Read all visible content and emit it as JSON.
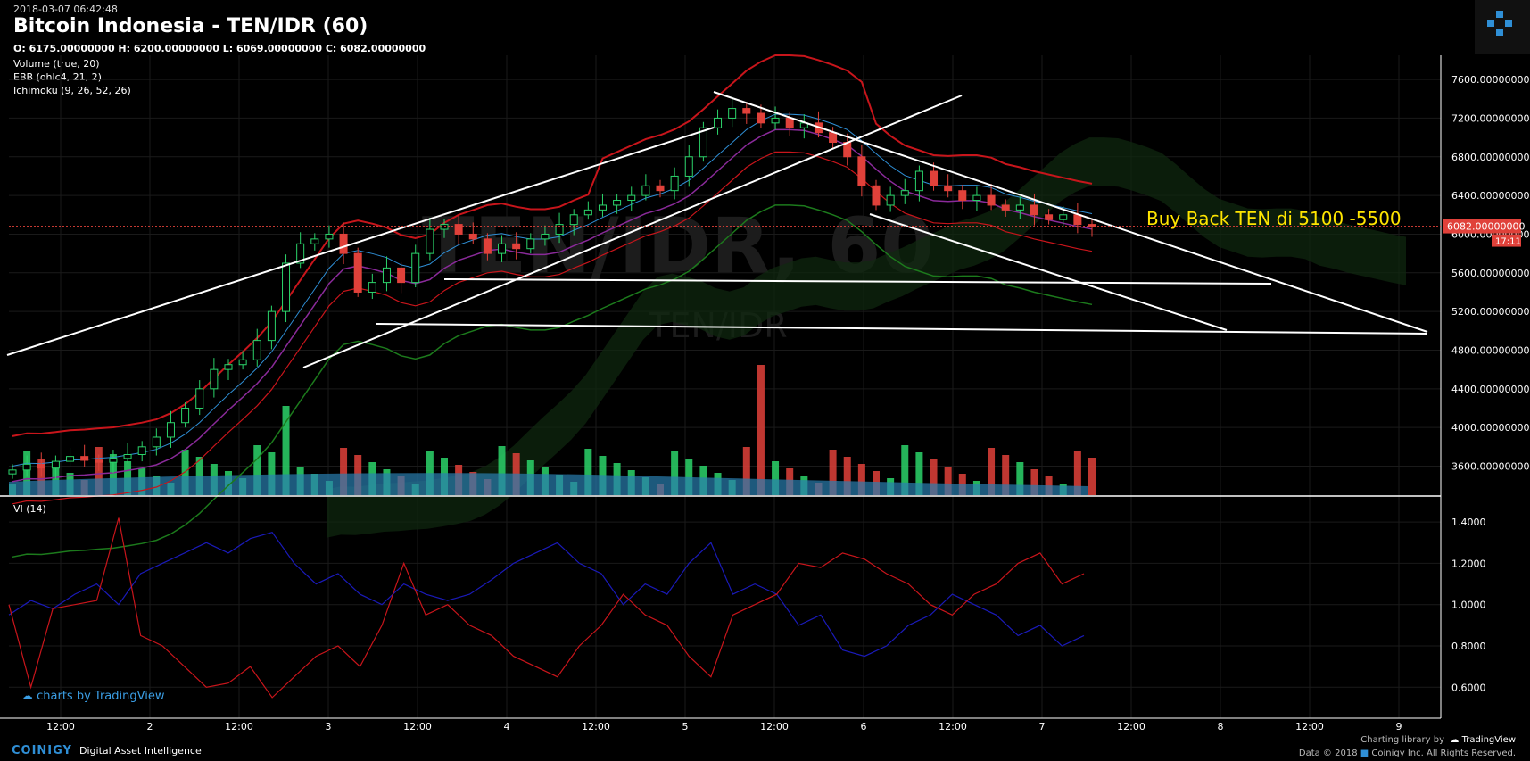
{
  "header": {
    "timestamp": "2018-03-07 06:42:48",
    "title": "Bitcoin Indonesia - TEN/IDR (60)",
    "ohlc": "O: 6175.00000000 H: 6200.00000000 L: 6069.00000000 C: 6082.00000000"
  },
  "indicators": [
    "Volume (true, 20)",
    "EBB (ohlc4, 21, 2)",
    "Ichimoku (9, 26, 52, 26)"
  ],
  "watermark": {
    "main": "TEN/IDR, 60",
    "sub": "TEN/IDR"
  },
  "annotation": "Buy Back TEN di 5100 -5500",
  "price_label": "6082.00000000",
  "countdown": "17:11",
  "vi_label": "VI (14)",
  "footer": {
    "brand": "COINIGY",
    "tagline": "Digital Asset Intelligence",
    "charting": "Charting library by",
    "tradingview": "TradingView",
    "copyright": "Data © 2018",
    "copyright2": "Coinigy Inc. All Rights Reserved.",
    "charts_by": "charts by TradingView"
  },
  "colors": {
    "up": "#2bd46a",
    "down": "#e0413a",
    "bb": "#c8151b",
    "cloud_green": "#1c7a1c",
    "vi_plus": "#1a1ab8",
    "vi_minus": "#c8151b",
    "annotation": "#ffe500",
    "accent": "#2f8fd6"
  },
  "chart_data": [
    {
      "type": "candlestick",
      "y_ticks": [
        "7600.00000000",
        "7200.00000000",
        "6800.00000000",
        "6400.00000000",
        "6000.00000000",
        "5600.00000000",
        "5200.00000000",
        "4800.00000000",
        "4400.00000000",
        "4000.00000000",
        "3600.00000000"
      ],
      "ylim": [
        3300,
        7850
      ],
      "x_ticks": [
        "12:00",
        "2",
        "12:00",
        "3",
        "12:00",
        "4",
        "12:00",
        "5",
        "12:00",
        "6",
        "12:00",
        "7",
        "12:00",
        "8",
        "12:00",
        "9"
      ],
      "close_series": [
        3560,
        3620,
        3580,
        3650,
        3700,
        3660,
        3640,
        3680,
        3720,
        3800,
        3900,
        4050,
        4200,
        4400,
        4600,
        4650,
        4700,
        4900,
        5200,
        5700,
        5900,
        5950,
        6000,
        5800,
        5400,
        5500,
        5650,
        5500,
        5800,
        6050,
        6100,
        6000,
        5950,
        5800,
        5900,
        5850,
        5950,
        6000,
        6100,
        6200,
        6250,
        6300,
        6350,
        6400,
        6500,
        6450,
        6600,
        6800,
        7100,
        7200,
        7300,
        7250,
        7150,
        7200,
        7100,
        7150,
        7050,
        6950,
        6800,
        6500,
        6300,
        6400,
        6450,
        6650,
        6500,
        6450,
        6350,
        6400,
        6300,
        6250,
        6300,
        6200,
        6150,
        6200,
        6100,
        6082
      ],
      "annotation_levels": [
        5100,
        5500
      ],
      "last_price": 6082
    },
    {
      "type": "line",
      "name": "VI (14)",
      "y_ticks": [
        "1.4000",
        "1.2000",
        "1.0000",
        "0.8000",
        "0.6000"
      ],
      "ylim": [
        0.45,
        1.5
      ],
      "series": [
        {
          "name": "",
          "values": [
            0.95,
            1.02,
            0.98,
            1.05,
            1.1,
            1.0,
            1.15,
            1.2,
            1.25,
            1.3,
            1.25,
            1.32,
            1.35,
            1.2,
            1.1,
            1.15,
            1.05,
            1.0,
            1.1,
            1.05,
            1.02,
            1.05,
            1.12,
            1.2,
            1.25,
            1.3,
            1.2,
            1.15,
            1.0,
            1.1,
            1.05,
            1.2,
            1.3,
            1.05,
            1.1,
            1.05,
            0.9,
            0.95,
            0.78,
            0.75,
            0.8,
            0.9,
            0.95,
            1.05,
            1.0,
            0.95,
            0.85,
            0.9,
            0.8,
            0.85
          ]
        },
        {
          "name": "",
          "values": [
            1.0,
            0.6,
            0.98,
            1.0,
            1.02,
            1.42,
            0.85,
            0.8,
            0.7,
            0.6,
            0.62,
            0.7,
            0.55,
            0.65,
            0.75,
            0.8,
            0.7,
            0.9,
            1.2,
            0.95,
            1.0,
            0.9,
            0.85,
            0.75,
            0.7,
            0.65,
            0.8,
            0.9,
            1.05,
            0.95,
            0.9,
            0.75,
            0.65,
            0.95,
            1.0,
            1.05,
            1.2,
            1.18,
            1.25,
            1.22,
            1.15,
            1.1,
            1.0,
            0.95,
            1.05,
            1.1,
            1.2,
            1.25,
            1.1,
            1.15
          ]
        }
      ]
    }
  ]
}
